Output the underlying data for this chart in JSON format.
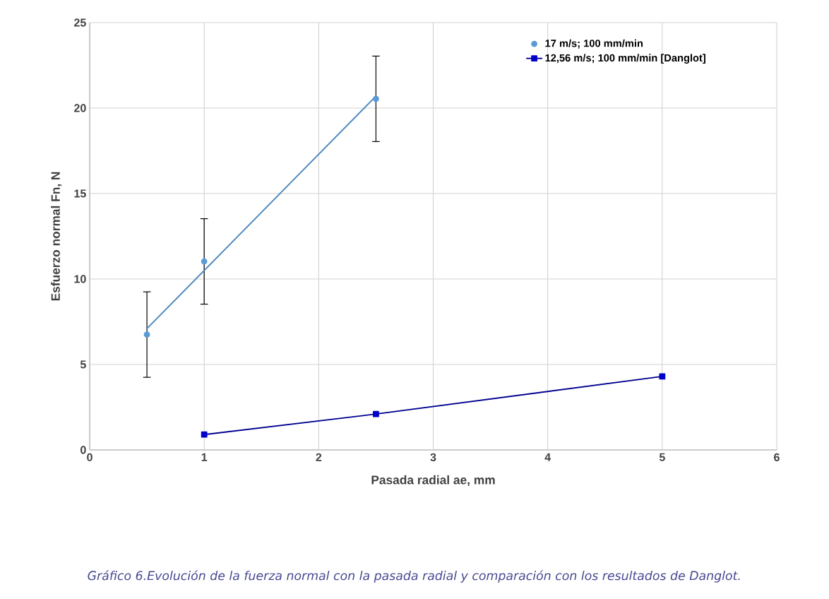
{
  "chart_data": {
    "type": "scatter",
    "xlabel": "Pasada radial ae, mm",
    "ylabel": "Esfuerzo normal Fn, N",
    "xlim": [
      0,
      6
    ],
    "xticks": [
      0,
      1,
      2,
      3,
      4,
      5,
      6
    ],
    "ylim": [
      0,
      25
    ],
    "yticks": [
      0,
      5,
      10,
      15,
      20,
      25
    ],
    "grid": true,
    "legend": "top right",
    "annotations": [
      "*Gráfico 6.Evolución de la fuerza normal con la pasada radial y comparación con los resultados de Danglot.*"
    ],
    "series": [
      {
        "name": "17 m/s; 100 mm/min",
        "marker": "circle",
        "color": "#5b9bd5",
        "x": [
          0.5,
          1,
          2.5
        ],
        "values": [
          6.75,
          11.03,
          20.54
        ],
        "errors": [
          2.5,
          2.5,
          2.5
        ]
      },
      {
        "type": "line",
        "marker": "none",
        "color": "#4a86bd",
        "x": [
          0.5,
          2.5
        ],
        "values": [
          7.1,
          20.7
        ]
      },
      {
        "name": "12,56 m/s; 100 mm/min [Danglot]",
        "type": "line",
        "marker": "square",
        "color": "#0000cc",
        "x": [
          1,
          2.5,
          5
        ],
        "values": [
          0.9,
          2.1,
          4.3
        ]
      }
    ]
  }
}
